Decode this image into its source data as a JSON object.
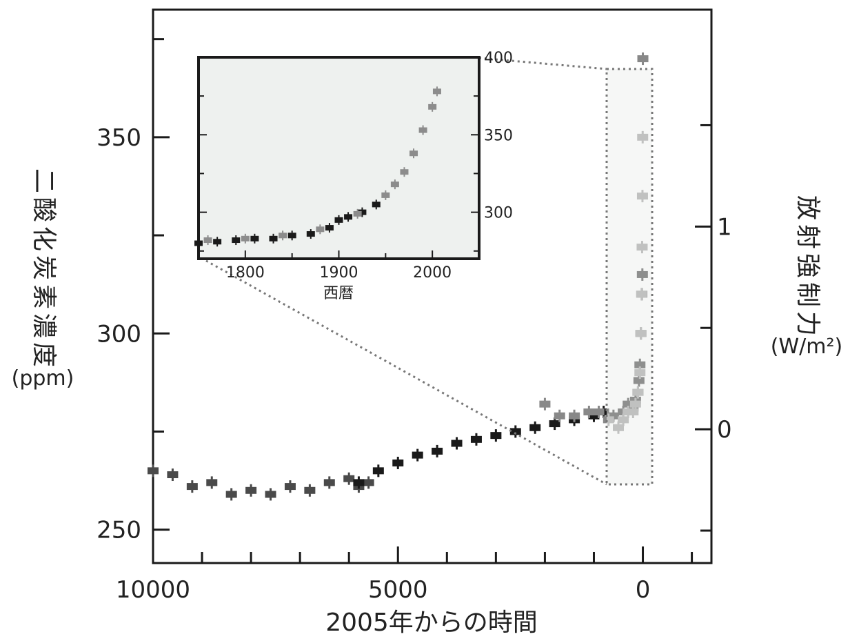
{
  "chart_data": [
    {
      "type": "scatter",
      "title": "",
      "xlabel": "2005年からの時間",
      "ylabel": "二酸化炭素濃度",
      "ylabel_unit": "(ppm)",
      "y2label": "放射強制力",
      "y2label_unit": "(W/m²)",
      "xlim": [
        10000,
        -1400
      ],
      "ylim": [
        241.5,
        382.5
      ],
      "y2lim": [
        -0.66,
        2.07
      ],
      "x_ticks": [
        {
          "value": 10000,
          "label": "10000"
        },
        {
          "value": 5000,
          "label": "5000"
        },
        {
          "value": 0,
          "label": "0"
        }
      ],
      "y_ticks": [
        {
          "value": 250,
          "label": "250"
        },
        {
          "value": 300,
          "label": "300"
        },
        {
          "value": 350,
          "label": "350"
        }
      ],
      "y2_ticks": [
        {
          "value": 0,
          "label": "0"
        },
        {
          "value": 1,
          "label": "1"
        }
      ],
      "grid": false,
      "series": [
        {
          "color": "#4a4a4a",
          "x": [
            10000,
            9600,
            9200,
            8800,
            8400,
            8000,
            7600,
            7200,
            6800,
            6400,
            6000,
            5800,
            5600
          ],
          "y": [
            265,
            264,
            261,
            262,
            259,
            260,
            259,
            261,
            260,
            262,
            263,
            261,
            262
          ]
        },
        {
          "color": "#1a1a1a",
          "x": [
            5800,
            5400,
            5000,
            4600,
            4200,
            3800,
            3400,
            3000,
            2600,
            2200,
            1800,
            1400,
            1000,
            800,
            600,
            400,
            300,
            200,
            150,
            100,
            80,
            60,
            40,
            20,
            10
          ],
          "y": [
            262,
            265,
            267,
            269,
            270,
            272,
            273,
            274,
            275,
            276,
            277,
            278,
            279,
            280,
            279,
            280,
            282,
            281,
            283,
            285,
            288,
            292,
            300,
            310,
            315
          ]
        },
        {
          "color": "#888888",
          "x": [
            2000,
            1700,
            1400,
            1100,
            900,
            700,
            500,
            400,
            300,
            200,
            150,
            100,
            60,
            40,
            25,
            15,
            8,
            4,
            0
          ],
          "y": [
            282,
            279,
            279,
            280,
            280,
            278,
            276,
            278,
            280,
            280,
            282,
            285,
            290,
            300,
            310,
            322,
            335,
            350,
            370
          ]
        }
      ]
    },
    {
      "type": "scatter",
      "title": "",
      "xlabel": "西暦",
      "ylabel": "",
      "xlim": [
        1750,
        2050
      ],
      "ylim": [
        270,
        400
      ],
      "x_ticks": [
        {
          "value": 1800,
          "label": "1800"
        },
        {
          "value": 1900,
          "label": "1900"
        },
        {
          "value": 2000,
          "label": "2000"
        }
      ],
      "y_ticks": [
        {
          "value": 300,
          "label": "300"
        },
        {
          "value": 350,
          "label": "350"
        },
        {
          "value": 400,
          "label": "400"
        }
      ],
      "grid": false,
      "series": [
        {
          "color": "#1a1a1a",
          "x": [
            1750,
            1770,
            1790,
            1810,
            1830,
            1850,
            1870,
            1890,
            1900,
            1910,
            1925,
            1940
          ],
          "y": [
            280,
            281,
            282,
            283,
            283,
            285,
            286,
            290,
            295,
            297,
            300,
            305
          ]
        },
        {
          "color": "#8c8c8c",
          "x": [
            1760,
            1800,
            1840,
            1880,
            1920,
            1950,
            1960,
            1970,
            1980,
            1990,
            2000,
            2005
          ],
          "y": [
            282,
            283,
            285,
            289,
            299,
            311,
            318,
            326,
            338,
            353,
            368,
            378
          ]
        }
      ]
    }
  ]
}
